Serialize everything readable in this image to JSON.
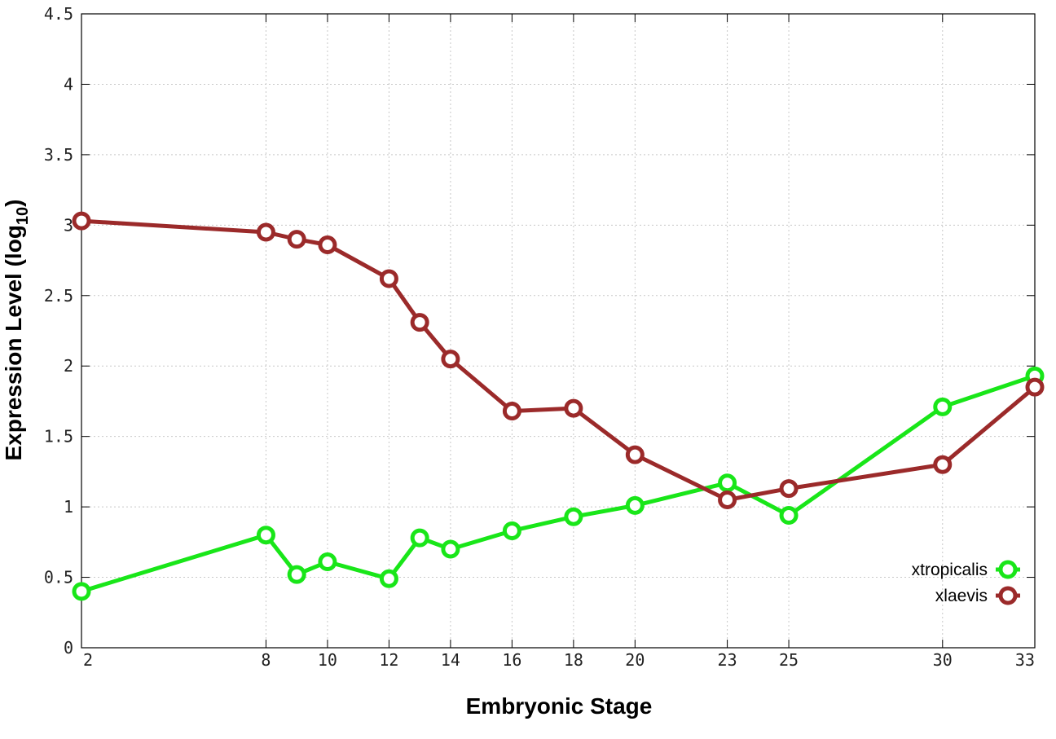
{
  "chart_data": {
    "type": "line",
    "xlabel": "Embryonic Stage",
    "ylabel": "Expression Level (log",
    "ylabel_subscript": "10",
    "ylabel_close": ")",
    "x_ticks": [
      2,
      8,
      10,
      12,
      14,
      16,
      18,
      20,
      23,
      25,
      30,
      33
    ],
    "y_ticks": [
      "0",
      "0.5",
      "1",
      "1.5",
      "2",
      "2.5",
      "3",
      "3.5",
      "4",
      "4.5"
    ],
    "xlim": [
      2,
      33
    ],
    "ylim": [
      0,
      4.5
    ],
    "grid": true,
    "legend_position": "bottom-right",
    "x": [
      2,
      8,
      9,
      10,
      12,
      13,
      14,
      16,
      18,
      20,
      23,
      25,
      30,
      33
    ],
    "series": [
      {
        "name": "xtropicalis",
        "color": "#19e619",
        "values": [
          0.4,
          0.8,
          0.52,
          0.61,
          0.49,
          0.78,
          0.7,
          0.83,
          0.93,
          1.01,
          1.17,
          0.94,
          1.71,
          1.93
        ]
      },
      {
        "name": "xlaevis",
        "color": "#9b2a2a",
        "values": [
          3.03,
          2.95,
          2.9,
          2.86,
          2.62,
          2.31,
          2.05,
          1.68,
          1.7,
          1.37,
          1.05,
          1.13,
          1.3,
          1.85
        ]
      }
    ]
  }
}
